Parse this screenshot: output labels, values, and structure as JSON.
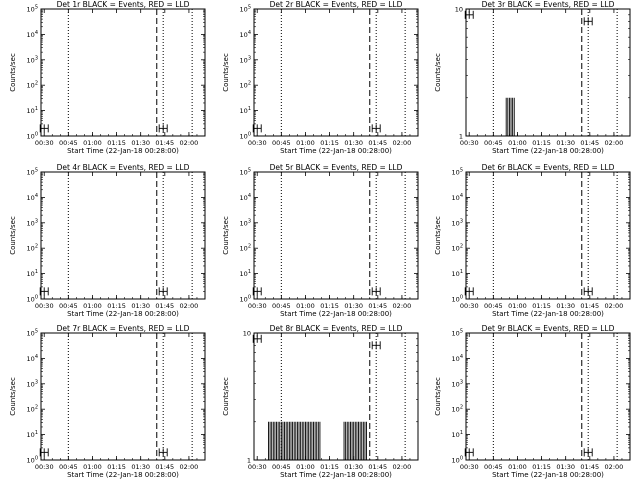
{
  "figure": {
    "xlabel": "Start Time (22-Jan-18 00:28:00)",
    "ylabel": "Counts/sec",
    "xticks": [
      "00:30",
      "00:45",
      "01:00",
      "01:15",
      "01:30",
      "01:45",
      "02:00"
    ]
  },
  "chart_data": [
    {
      "type": "line",
      "title": "Det 1r BLACK = Events, RED = LLD",
      "xlim": [
        "00:28",
        "02:10"
      ],
      "ylog": true,
      "ytick_labels": [
        "10^0",
        "10^1",
        "10^2",
        "10^3",
        "10^4",
        "10^5"
      ],
      "ylim": [
        1,
        100000
      ],
      "vlines": {
        "dotted": [
          "00:45",
          "01:44",
          "02:02"
        ],
        "dashed": [
          "01:40"
        ]
      },
      "markers": [
        {
          "x": "00:30",
          "y": 2
        },
        {
          "x": "01:44",
          "y": 2
        }
      ],
      "bars": []
    },
    {
      "type": "line",
      "title": "Det 2r BLACK = Events, RED = LLD",
      "xlim": [
        "00:28",
        "02:10"
      ],
      "ylog": true,
      "ytick_labels": [
        "10^0",
        "10^1",
        "10^2",
        "10^3",
        "10^4",
        "10^5"
      ],
      "ylim": [
        1,
        100000
      ],
      "vlines": {
        "dotted": [
          "00:45",
          "01:44",
          "02:02"
        ],
        "dashed": [
          "01:40"
        ]
      },
      "markers": [
        {
          "x": "00:30",
          "y": 2
        },
        {
          "x": "01:44",
          "y": 2
        }
      ],
      "bars": []
    },
    {
      "type": "line",
      "title": "Det 3r BLACK = Events, RED = LLD",
      "xlim": [
        "00:28",
        "02:10"
      ],
      "ylog": true,
      "ytick_labels": [
        "1",
        "10"
      ],
      "ylim": [
        1,
        10
      ],
      "vlines": {
        "dotted": [
          "00:45",
          "01:44",
          "02:02"
        ],
        "dashed": [
          "01:40"
        ]
      },
      "markers": [
        {
          "x": "00:30",
          "y": 9
        },
        {
          "x": "01:44",
          "y": 8
        }
      ],
      "bars": [
        {
          "x": "00:53",
          "y": 2
        },
        {
          "x": "00:54",
          "y": 2
        },
        {
          "x": "00:55",
          "y": 2
        },
        {
          "x": "00:56",
          "y": 2
        },
        {
          "x": "00:57",
          "y": 2
        },
        {
          "x": "00:58",
          "y": 2
        }
      ]
    },
    {
      "type": "line",
      "title": "Det 4r BLACK = Events, RED = LLD",
      "xlim": [
        "00:28",
        "02:10"
      ],
      "ylog": true,
      "ytick_labels": [
        "10^0",
        "10^1",
        "10^2",
        "10^3",
        "10^4",
        "10^5"
      ],
      "ylim": [
        1,
        100000
      ],
      "vlines": {
        "dotted": [
          "00:45",
          "01:44",
          "02:02"
        ],
        "dashed": [
          "01:40"
        ]
      },
      "markers": [
        {
          "x": "00:30",
          "y": 2
        },
        {
          "x": "01:44",
          "y": 2
        }
      ],
      "bars": []
    },
    {
      "type": "line",
      "title": "Det 5r BLACK = Events, RED = LLD",
      "xlim": [
        "00:28",
        "02:10"
      ],
      "ylog": true,
      "ytick_labels": [
        "10^0",
        "10^1",
        "10^2",
        "10^3",
        "10^4",
        "10^5"
      ],
      "ylim": [
        1,
        100000
      ],
      "vlines": {
        "dotted": [
          "00:45",
          "01:44",
          "02:02"
        ],
        "dashed": [
          "01:40"
        ]
      },
      "markers": [
        {
          "x": "00:30",
          "y": 2
        },
        {
          "x": "01:44",
          "y": 2
        }
      ],
      "bars": []
    },
    {
      "type": "line",
      "title": "Det 6r BLACK = Events, RED = LLD",
      "xlim": [
        "00:28",
        "02:10"
      ],
      "ylog": true,
      "ytick_labels": [
        "10^0",
        "10^1",
        "10^2",
        "10^3",
        "10^4",
        "10^5"
      ],
      "ylim": [
        1,
        100000
      ],
      "vlines": {
        "dotted": [
          "00:45",
          "01:44",
          "02:02"
        ],
        "dashed": [
          "01:40"
        ]
      },
      "markers": [
        {
          "x": "00:30",
          "y": 2
        },
        {
          "x": "01:44",
          "y": 2
        }
      ],
      "bars": []
    },
    {
      "type": "line",
      "title": "Det 7r BLACK = Events, RED = LLD",
      "xlim": [
        "00:28",
        "02:10"
      ],
      "ylog": true,
      "ytick_labels": [
        "10^0",
        "10^1",
        "10^2",
        "10^3",
        "10^4",
        "10^5"
      ],
      "ylim": [
        1,
        100000
      ],
      "vlines": {
        "dotted": [
          "00:45",
          "01:44",
          "02:02"
        ],
        "dashed": [
          "01:40"
        ]
      },
      "markers": [
        {
          "x": "00:30",
          "y": 2
        },
        {
          "x": "01:44",
          "y": 2
        }
      ],
      "bars": []
    },
    {
      "type": "line",
      "title": "Det 8r BLACK = Events, RED = LLD",
      "xlim": [
        "00:28",
        "02:10"
      ],
      "ylog": true,
      "ytick_labels": [
        "1",
        "10"
      ],
      "ylim": [
        1,
        10
      ],
      "vlines": {
        "dotted": [
          "00:45",
          "01:44",
          "02:02"
        ],
        "dashed": [
          "01:40"
        ]
      },
      "markers": [
        {
          "x": "00:30",
          "y": 9
        },
        {
          "x": "01:44",
          "y": 8
        }
      ],
      "bars": [
        {
          "x": "00:37",
          "y": 2
        },
        {
          "x": "00:38",
          "y": 2
        },
        {
          "x": "00:39",
          "y": 2
        },
        {
          "x": "00:40",
          "y": 2
        },
        {
          "x": "00:41",
          "y": 2
        },
        {
          "x": "00:42",
          "y": 2
        },
        {
          "x": "00:43",
          "y": 2
        },
        {
          "x": "00:44",
          "y": 2
        },
        {
          "x": "00:45",
          "y": 2
        },
        {
          "x": "00:46",
          "y": 2
        },
        {
          "x": "00:47",
          "y": 2
        },
        {
          "x": "00:48",
          "y": 2
        },
        {
          "x": "00:49",
          "y": 2
        },
        {
          "x": "00:50",
          "y": 2
        },
        {
          "x": "00:51",
          "y": 2
        },
        {
          "x": "00:52",
          "y": 2
        },
        {
          "x": "00:53",
          "y": 2
        },
        {
          "x": "00:54",
          "y": 2
        },
        {
          "x": "00:55",
          "y": 2
        },
        {
          "x": "00:56",
          "y": 2
        },
        {
          "x": "00:57",
          "y": 2
        },
        {
          "x": "00:58",
          "y": 2
        },
        {
          "x": "00:59",
          "y": 2
        },
        {
          "x": "01:00",
          "y": 2
        },
        {
          "x": "01:01",
          "y": 2
        },
        {
          "x": "01:02",
          "y": 2
        },
        {
          "x": "01:03",
          "y": 2
        },
        {
          "x": "01:04",
          "y": 2
        },
        {
          "x": "01:05",
          "y": 2
        },
        {
          "x": "01:06",
          "y": 2
        },
        {
          "x": "01:07",
          "y": 2
        },
        {
          "x": "01:08",
          "y": 2
        },
        {
          "x": "01:09",
          "y": 2
        },
        {
          "x": "01:24",
          "y": 2
        },
        {
          "x": "01:25",
          "y": 2
        },
        {
          "x": "01:26",
          "y": 2
        },
        {
          "x": "01:27",
          "y": 2
        },
        {
          "x": "01:28",
          "y": 2
        },
        {
          "x": "01:29",
          "y": 2
        },
        {
          "x": "01:30",
          "y": 2
        },
        {
          "x": "01:31",
          "y": 2
        },
        {
          "x": "01:32",
          "y": 2
        },
        {
          "x": "01:33",
          "y": 2
        },
        {
          "x": "01:34",
          "y": 2
        },
        {
          "x": "01:35",
          "y": 2
        },
        {
          "x": "01:36",
          "y": 2
        },
        {
          "x": "01:37",
          "y": 2
        },
        {
          "x": "01:38",
          "y": 2
        }
      ]
    },
    {
      "type": "line",
      "title": "Det 9r BLACK = Events, RED = LLD",
      "xlim": [
        "00:28",
        "02:10"
      ],
      "ylog": true,
      "ytick_labels": [
        "10^0",
        "10^1",
        "10^2",
        "10^3",
        "10^4",
        "10^5"
      ],
      "ylim": [
        1,
        100000
      ],
      "vlines": {
        "dotted": [
          "00:45",
          "01:44",
          "02:02"
        ],
        "dashed": [
          "01:40"
        ]
      },
      "markers": [
        {
          "x": "00:30",
          "y": 2
        },
        {
          "x": "01:44",
          "y": 2
        }
      ],
      "bars": []
    }
  ]
}
